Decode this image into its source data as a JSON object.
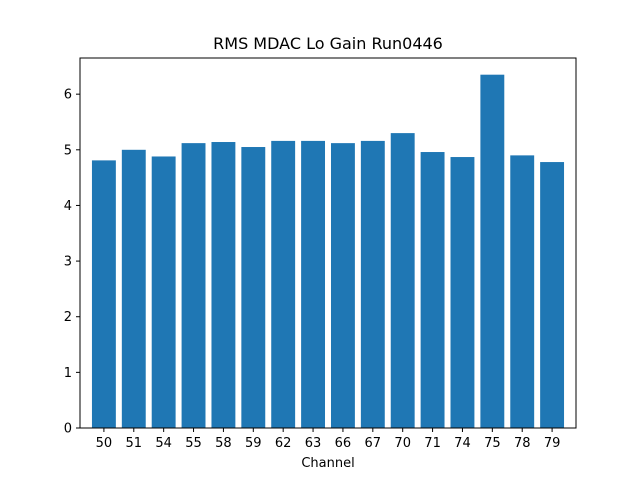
{
  "chart_data": {
    "type": "bar",
    "title": "RMS MDAC Lo Gain Run0446",
    "xlabel": "Channel",
    "ylabel": "",
    "categories": [
      "50",
      "51",
      "54",
      "55",
      "58",
      "59",
      "62",
      "63",
      "66",
      "67",
      "70",
      "71",
      "74",
      "75",
      "78",
      "79"
    ],
    "values": [
      4.81,
      5.0,
      4.88,
      5.12,
      5.14,
      5.05,
      5.16,
      5.16,
      5.12,
      5.16,
      5.3,
      4.96,
      4.87,
      6.35,
      4.9,
      4.78
    ],
    "ylim": [
      0,
      6.65
    ],
    "yticks": [
      0,
      1,
      2,
      3,
      4,
      5,
      6
    ],
    "grid": false,
    "legend": "none",
    "bar_color": "#1f77b4"
  }
}
